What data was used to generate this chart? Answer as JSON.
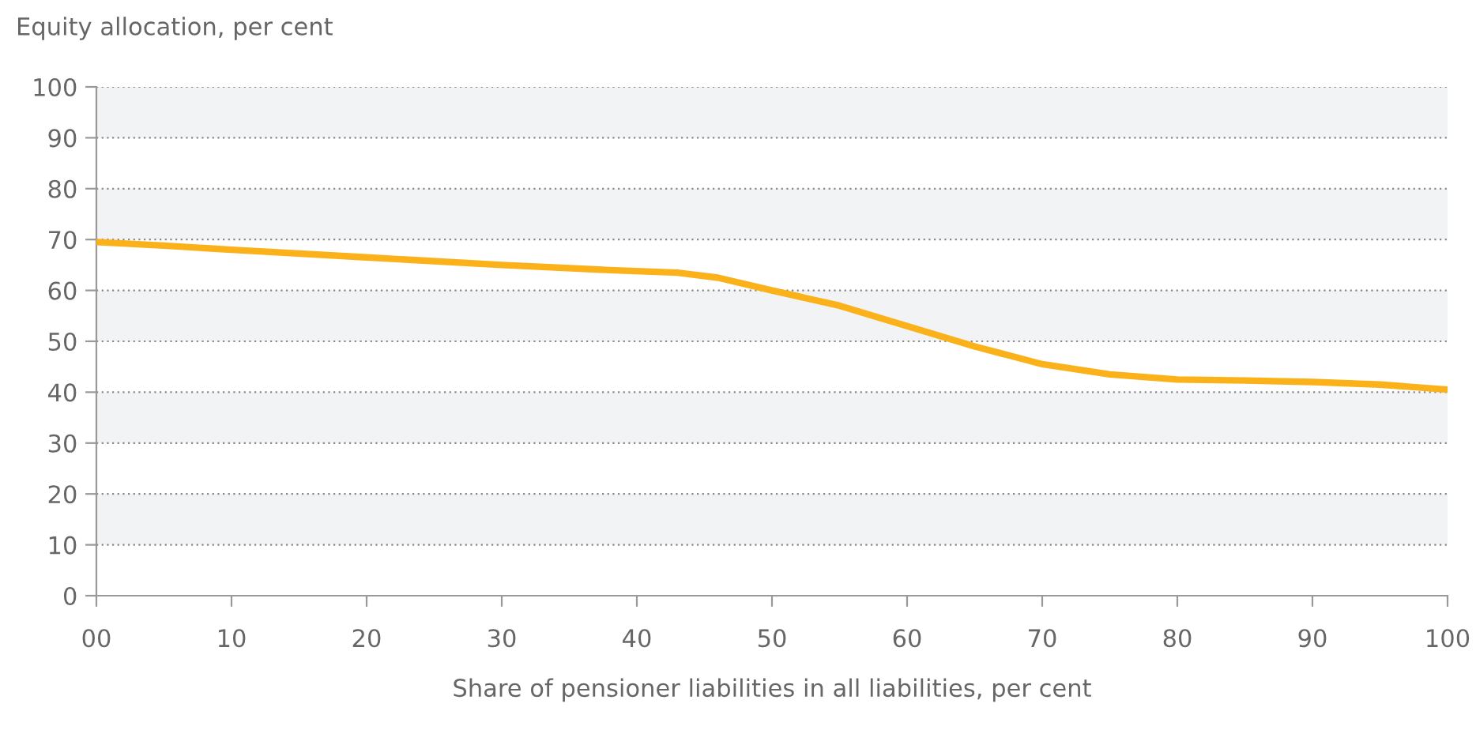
{
  "chart_data": {
    "type": "line",
    "ylabel": "Equity allocation, per cent",
    "xlabel": "Share of pensioner liabilities in all liabilities, per cent",
    "x": [
      0,
      5,
      10,
      20,
      30,
      38,
      43,
      46,
      50,
      55,
      60,
      65,
      70,
      75,
      80,
      85,
      90,
      95,
      100
    ],
    "series": [
      {
        "color": "#fbb21a",
        "values": [
          69.5,
          68.8,
          68,
          66.5,
          65,
          64,
          63.5,
          62.5,
          60,
          57,
          53,
          49,
          45.5,
          43.5,
          42.5,
          42.3,
          42,
          41.5,
          40.5
        ]
      }
    ],
    "xlim": [
      0,
      100
    ],
    "xticks": [
      {
        "value": 0,
        "label": "00"
      },
      10,
      20,
      30,
      40,
      50,
      60,
      70,
      80,
      90,
      100
    ],
    "ylim": [
      0,
      100
    ],
    "yticks": [
      0,
      10,
      20,
      30,
      40,
      50,
      60,
      70,
      80,
      90,
      100
    ],
    "grid": "y",
    "line_style": "solid",
    "marker": "none",
    "bands": [
      {
        "axis": "y",
        "from": 10,
        "to": 20,
        "color": "#f2f3f5"
      },
      {
        "axis": "y",
        "from": 30,
        "to": 40,
        "color": "#f2f3f5"
      },
      {
        "axis": "y",
        "from": 50,
        "to": 60,
        "color": "#f2f3f5"
      },
      {
        "axis": "y",
        "from": 70,
        "to": 80,
        "color": "#f2f3f5"
      },
      {
        "axis": "y",
        "from": 90,
        "to": 100,
        "color": "#f2f3f5"
      }
    ]
  }
}
